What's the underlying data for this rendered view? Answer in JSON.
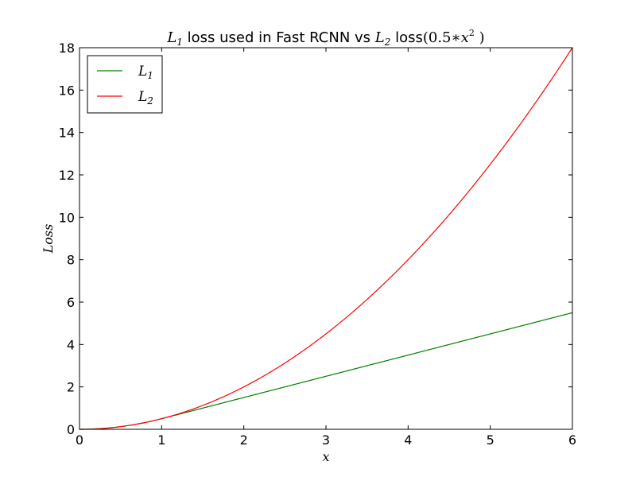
{
  "chart_data": {
    "type": "line",
    "title": {
      "part1_var": "L",
      "part1_sub": "1",
      "part2": " loss used in Fast RCNN vs ",
      "part3_var": "L",
      "part3_sub": "2",
      "part4": " loss",
      "part5": "(0.5∗",
      "part6_var": "x",
      "part6_sup": "2",
      "part7": " )"
    },
    "xlabel": "x",
    "ylabel": "Loss",
    "xlim": [
      0,
      6
    ],
    "ylim": [
      0,
      18
    ],
    "xticks": [
      0,
      1,
      2,
      3,
      4,
      5,
      6
    ],
    "yticks": [
      0,
      2,
      4,
      6,
      8,
      10,
      12,
      14,
      16,
      18
    ],
    "grid": false,
    "legend_position": "top-left",
    "series": [
      {
        "name": "L1",
        "label_var": "L",
        "label_sub": "1",
        "color": "#008000",
        "function": "smooth_l1",
        "x": [
          0,
          0.25,
          0.5,
          0.75,
          1,
          1.5,
          2,
          3,
          4,
          5,
          6
        ],
        "y": [
          0,
          0.03125,
          0.125,
          0.28125,
          0.5,
          1.0,
          1.5,
          2.5,
          3.5,
          4.5,
          5.5
        ]
      },
      {
        "name": "L2",
        "label_var": "L",
        "label_sub": "2",
        "color": "#ff0000",
        "function": "quadratic",
        "x": [
          0,
          0.5,
          1,
          1.5,
          2,
          2.5,
          3,
          3.5,
          4,
          4.5,
          5,
          5.5,
          6
        ],
        "y": [
          0,
          0.125,
          0.5,
          1.125,
          2,
          3.125,
          4.5,
          6.125,
          8,
          10.125,
          12.5,
          15.125,
          18
        ]
      }
    ]
  }
}
